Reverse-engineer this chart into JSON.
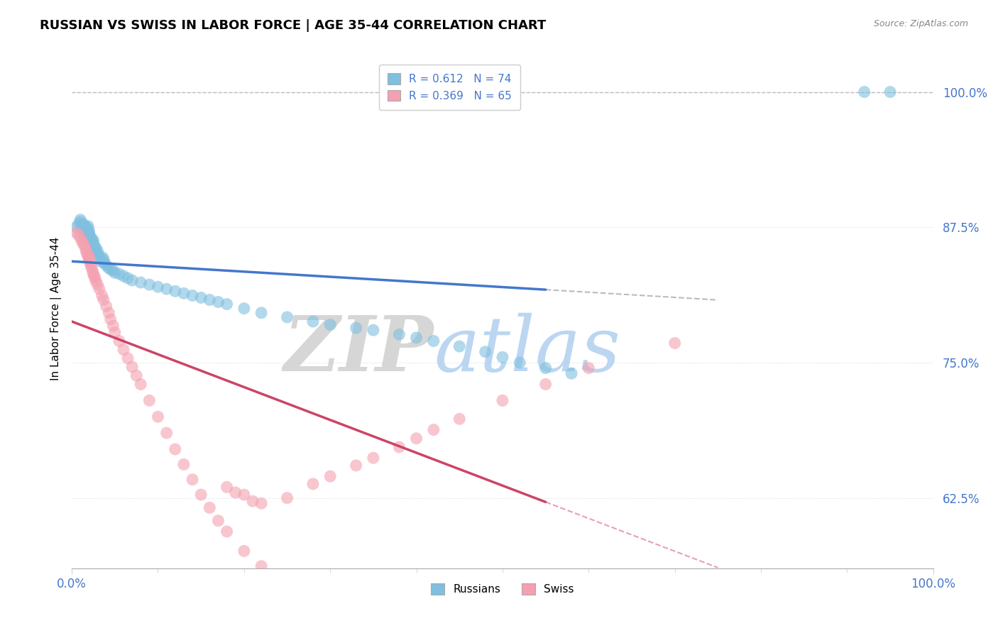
{
  "title": "RUSSIAN VS SWISS IN LABOR FORCE | AGE 35-44 CORRELATION CHART",
  "source_text": "Source: ZipAtlas.com",
  "ylabel": "In Labor Force | Age 35-44",
  "xlim": [
    0.0,
    1.0
  ],
  "ylim": [
    0.56,
    1.04
  ],
  "yticks": [
    0.625,
    0.75,
    0.875,
    1.0
  ],
  "ytick_labels": [
    "62.5%",
    "75.0%",
    "87.5%",
    "100.0%"
  ],
  "xtick_labels": [
    "0.0%",
    "100.0%"
  ],
  "legend_r_label": "R = 0.612   N = 74",
  "legend_s_label": "R = 0.369   N = 65",
  "watermark_zip": "ZIP",
  "watermark_atlas": "atlas",
  "watermark_color_zip": "#cccccc",
  "watermark_color_atlas": "#aaccee",
  "russian_color": "#7fbfdf",
  "swiss_color": "#f4a0b0",
  "background_color": "#ffffff",
  "blue_line_color": "#4477cc",
  "pink_line_color": "#cc4466",
  "dashed_line_color": "#bbbbbb",
  "grid_color": "#dddddd",
  "tick_label_color": "#4477cc",
  "russians_x": [
    0.005,
    0.008,
    0.01,
    0.01,
    0.012,
    0.013,
    0.015,
    0.015,
    0.015,
    0.016,
    0.017,
    0.018,
    0.018,
    0.019,
    0.02,
    0.02,
    0.02,
    0.021,
    0.022,
    0.022,
    0.023,
    0.024,
    0.025,
    0.025,
    0.026,
    0.027,
    0.028,
    0.028,
    0.03,
    0.03,
    0.032,
    0.033,
    0.035,
    0.036,
    0.037,
    0.038,
    0.04,
    0.042,
    0.045,
    0.048,
    0.05,
    0.055,
    0.06,
    0.065,
    0.07,
    0.08,
    0.09,
    0.1,
    0.11,
    0.12,
    0.13,
    0.14,
    0.15,
    0.16,
    0.17,
    0.18,
    0.2,
    0.22,
    0.25,
    0.28,
    0.3,
    0.33,
    0.35,
    0.38,
    0.4,
    0.42,
    0.45,
    0.48,
    0.5,
    0.52,
    0.55,
    0.58,
    0.92,
    0.95
  ],
  "russians_y": [
    0.875,
    0.878,
    0.88,
    0.882,
    0.875,
    0.878,
    0.87,
    0.872,
    0.875,
    0.876,
    0.872,
    0.87,
    0.874,
    0.876,
    0.868,
    0.87,
    0.872,
    0.865,
    0.862,
    0.866,
    0.864,
    0.862,
    0.86,
    0.863,
    0.858,
    0.855,
    0.853,
    0.856,
    0.85,
    0.853,
    0.848,
    0.845,
    0.843,
    0.847,
    0.845,
    0.842,
    0.84,
    0.838,
    0.836,
    0.835,
    0.833,
    0.832,
    0.83,
    0.828,
    0.826,
    0.824,
    0.822,
    0.82,
    0.818,
    0.816,
    0.814,
    0.812,
    0.81,
    0.808,
    0.806,
    0.804,
    0.8,
    0.796,
    0.792,
    0.788,
    0.785,
    0.782,
    0.78,
    0.776,
    0.773,
    0.77,
    0.765,
    0.76,
    0.755,
    0.75,
    0.745,
    0.74,
    1.0,
    1.0
  ],
  "swiss_x": [
    0.005,
    0.008,
    0.01,
    0.012,
    0.013,
    0.015,
    0.016,
    0.017,
    0.018,
    0.019,
    0.02,
    0.02,
    0.021,
    0.022,
    0.023,
    0.024,
    0.025,
    0.026,
    0.027,
    0.028,
    0.03,
    0.032,
    0.035,
    0.037,
    0.04,
    0.043,
    0.045,
    0.048,
    0.05,
    0.055,
    0.06,
    0.065,
    0.07,
    0.075,
    0.08,
    0.09,
    0.1,
    0.11,
    0.12,
    0.13,
    0.14,
    0.15,
    0.16,
    0.17,
    0.18,
    0.2,
    0.22,
    0.25,
    0.28,
    0.3,
    0.33,
    0.35,
    0.38,
    0.4,
    0.42,
    0.45,
    0.5,
    0.55,
    0.6,
    0.7,
    0.18,
    0.19,
    0.2,
    0.21,
    0.22
  ],
  "swiss_y": [
    0.87,
    0.868,
    0.865,
    0.862,
    0.86,
    0.858,
    0.855,
    0.852,
    0.85,
    0.848,
    0.845,
    0.848,
    0.843,
    0.84,
    0.838,
    0.835,
    0.832,
    0.83,
    0.828,
    0.825,
    0.822,
    0.818,
    0.812,
    0.808,
    0.802,
    0.796,
    0.79,
    0.784,
    0.778,
    0.77,
    0.762,
    0.754,
    0.746,
    0.738,
    0.73,
    0.715,
    0.7,
    0.685,
    0.67,
    0.656,
    0.642,
    0.628,
    0.616,
    0.604,
    0.594,
    0.576,
    0.562,
    0.625,
    0.638,
    0.645,
    0.655,
    0.662,
    0.672,
    0.68,
    0.688,
    0.698,
    0.715,
    0.73,
    0.745,
    0.768,
    0.635,
    0.63,
    0.628,
    0.622,
    0.62
  ]
}
